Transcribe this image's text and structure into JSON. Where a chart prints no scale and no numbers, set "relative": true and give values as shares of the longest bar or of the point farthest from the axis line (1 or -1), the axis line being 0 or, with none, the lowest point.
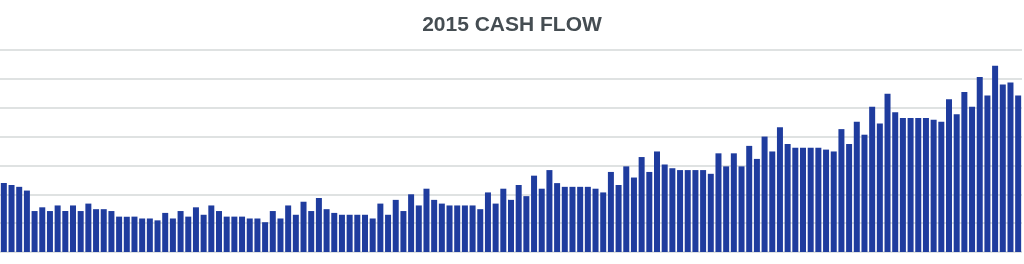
{
  "chart_data": {
    "type": "bar",
    "title": "2015 CASH FLOW",
    "relative": true,
    "grid": "y",
    "color": "#1f3c9e",
    "categories": [
      null,
      null,
      null,
      null,
      null,
      null,
      null,
      null,
      null,
      null,
      null,
      null,
      null,
      null,
      null,
      null,
      null,
      null,
      null,
      null,
      null,
      null,
      null,
      null,
      null,
      null,
      null,
      null,
      null,
      null,
      null,
      null,
      null,
      null,
      null,
      null,
      null,
      null,
      null,
      null,
      null,
      null,
      null,
      null,
      null,
      null,
      null,
      null,
      null,
      null,
      null,
      null,
      null,
      null,
      null,
      null,
      null,
      null,
      null,
      null,
      null,
      null,
      null,
      null,
      null,
      null,
      null,
      null,
      null,
      null,
      null,
      null,
      null,
      null,
      null,
      null,
      null,
      null,
      null,
      null,
      null,
      null,
      null,
      null,
      null,
      null,
      null,
      null,
      null,
      null,
      null,
      null,
      null,
      null,
      null,
      null,
      null,
      null,
      null,
      null,
      null,
      null,
      null,
      null,
      null,
      null,
      null,
      null,
      null,
      null,
      null,
      null,
      null,
      null,
      null,
      null,
      null,
      null,
      null,
      null,
      null,
      null,
      null,
      null,
      null,
      null,
      null,
      null,
      null,
      null,
      null,
      null,
      null
    ],
    "values": [
      0.37,
      0.36,
      0.35,
      0.33,
      0.22,
      0.24,
      0.22,
      0.25,
      0.22,
      0.25,
      0.22,
      0.26,
      0.23,
      0.23,
      0.22,
      0.19,
      0.19,
      0.19,
      0.18,
      0.18,
      0.17,
      0.21,
      0.18,
      0.22,
      0.19,
      0.24,
      0.2,
      0.25,
      0.22,
      0.19,
      0.19,
      0.19,
      0.18,
      0.18,
      0.16,
      0.22,
      0.18,
      0.25,
      0.2,
      0.27,
      0.22,
      0.29,
      0.23,
      0.21,
      0.2,
      0.2,
      0.2,
      0.2,
      0.18,
      0.26,
      0.2,
      0.28,
      0.22,
      0.31,
      0.25,
      0.34,
      0.28,
      0.26,
      0.25,
      0.25,
      0.25,
      0.25,
      0.23,
      0.32,
      0.26,
      0.34,
      0.28,
      0.36,
      0.3,
      0.41,
      0.34,
      0.44,
      0.37,
      0.35,
      0.35,
      0.35,
      0.35,
      0.34,
      0.32,
      0.43,
      0.36,
      0.46,
      0.4,
      0.51,
      0.43,
      0.54,
      0.47,
      0.45,
      0.44,
      0.44,
      0.44,
      0.44,
      0.42,
      0.53,
      0.46,
      0.53,
      0.46,
      0.57,
      0.5,
      0.62,
      0.54,
      0.67,
      0.58,
      0.56,
      0.56,
      0.56,
      0.56,
      0.55,
      0.54,
      0.66,
      0.58,
      0.7,
      0.63,
      0.78,
      0.69,
      0.85,
      0.75,
      0.72,
      0.72,
      0.72,
      0.72,
      0.71,
      0.7,
      0.82,
      0.74,
      0.86,
      0.78,
      0.94,
      0.84,
      1,
      0.9,
      0.91,
      0.84
    ]
  }
}
